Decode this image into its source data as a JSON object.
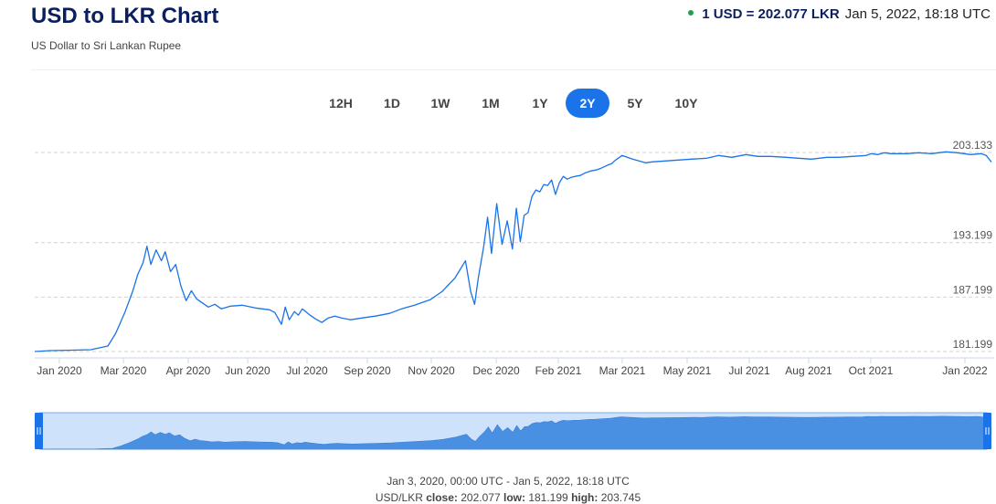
{
  "header": {
    "title": "USD to LKR Chart",
    "subtitle": "US Dollar to Sri Lankan Rupee",
    "rate_label": "1 USD = 202.077 LKR",
    "timestamp": "Jan 5, 2022, 18:18 UTC",
    "status_color": "#1fa34a"
  },
  "ranges": [
    "12H",
    "1D",
    "1W",
    "1M",
    "1Y",
    "2Y",
    "5Y",
    "10Y"
  ],
  "active_range": "2Y",
  "footer": {
    "period": "Jan 3, 2020, 00:00 UTC - Jan 5, 2022, 18:18 UTC",
    "pair": "USD/LKR",
    "close_label": "close:",
    "close": "202.077",
    "low_label": "low:",
    "low": "181.199",
    "high_label": "high:",
    "high": "203.745"
  },
  "chart_data": {
    "type": "line",
    "series": [
      {
        "x": [
          "2020-01-03",
          "2020-01-15",
          "2020-02-01",
          "2020-02-15",
          "2020-02-28",
          "2020-03-05",
          "2020-03-12",
          "2020-03-18",
          "2020-03-22",
          "2020-03-26",
          "2020-03-29",
          "2020-04-01",
          "2020-04-05",
          "2020-04-09",
          "2020-04-12",
          "2020-04-16",
          "2020-04-20",
          "2020-04-24",
          "2020-04-28",
          "2020-05-02",
          "2020-05-06",
          "2020-05-10",
          "2020-05-15",
          "2020-05-20",
          "2020-05-25",
          "2020-06-01",
          "2020-06-10",
          "2020-06-20",
          "2020-07-01",
          "2020-07-05",
          "2020-07-10",
          "2020-07-13",
          "2020-07-16",
          "2020-07-20",
          "2020-07-23",
          "2020-07-26",
          "2020-08-01",
          "2020-08-05",
          "2020-08-10",
          "2020-08-15",
          "2020-08-20",
          "2020-08-25",
          "2020-09-01",
          "2020-09-10",
          "2020-09-20",
          "2020-10-01",
          "2020-10-10",
          "2020-10-20",
          "2020-11-01",
          "2020-11-10",
          "2020-11-20",
          "2020-11-28",
          "2020-12-02",
          "2020-12-05",
          "2020-12-08",
          "2020-12-12",
          "2020-12-15",
          "2020-12-18",
          "2020-12-22",
          "2020-12-26",
          "2020-12-30",
          "2021-01-03",
          "2021-01-06",
          "2021-01-09",
          "2021-01-12",
          "2021-01-15",
          "2021-01-18",
          "2021-01-21",
          "2021-01-24",
          "2021-01-27",
          "2021-01-30",
          "2021-02-02",
          "2021-02-05",
          "2021-02-08",
          "2021-02-11",
          "2021-02-14",
          "2021-02-17",
          "2021-02-20",
          "2021-02-24",
          "2021-02-28",
          "2021-03-04",
          "2021-03-08",
          "2021-03-12",
          "2021-03-15",
          "2021-03-18",
          "2021-03-20",
          "2021-03-23",
          "2021-03-25",
          "2021-03-28",
          "2021-04-01",
          "2021-04-05",
          "2021-04-10",
          "2021-04-15",
          "2021-04-20",
          "2021-04-30",
          "2021-05-10",
          "2021-05-20",
          "2021-06-01",
          "2021-06-10",
          "2021-06-20",
          "2021-07-01",
          "2021-07-10",
          "2021-07-20",
          "2021-08-01",
          "2021-08-10",
          "2021-08-20",
          "2021-09-01",
          "2021-09-10",
          "2021-09-20",
          "2021-10-01",
          "2021-10-05",
          "2021-10-10",
          "2021-10-15",
          "2021-10-20",
          "2021-11-01",
          "2021-11-10",
          "2021-11-20",
          "2021-12-01",
          "2021-12-10",
          "2021-12-20",
          "2021-12-28",
          "2022-01-01",
          "2022-01-05"
        ],
        "y": [
          181.2,
          181.3,
          181.35,
          181.4,
          181.8,
          183.2,
          185.5,
          187.8,
          189.7,
          191.0,
          192.8,
          190.8,
          192.4,
          191.2,
          192.2,
          190.0,
          190.8,
          188.4,
          186.8,
          187.9,
          187.0,
          186.6,
          186.1,
          186.4,
          185.9,
          186.2,
          186.3,
          186.0,
          185.8,
          185.5,
          184.2,
          186.1,
          184.7,
          185.6,
          185.2,
          185.9,
          185.2,
          184.8,
          184.4,
          184.9,
          185.1,
          184.9,
          184.7,
          184.9,
          185.1,
          185.4,
          185.9,
          186.3,
          186.9,
          187.8,
          189.3,
          191.2,
          187.8,
          186.4,
          189.4,
          192.8,
          196.0,
          192.0,
          197.5,
          193.0,
          195.6,
          192.5,
          197.0,
          193.3,
          196.2,
          196.5,
          198.3,
          199.0,
          198.8,
          199.6,
          199.5,
          200.1,
          198.5,
          199.8,
          200.5,
          200.2,
          200.4,
          200.5,
          200.6,
          200.9,
          201.1,
          201.2,
          201.4,
          201.6,
          201.8,
          201.9,
          202.3,
          202.5,
          202.8,
          202.6,
          202.4,
          202.2,
          202.0,
          202.1,
          202.2,
          202.3,
          202.4,
          202.5,
          202.8,
          202.6,
          202.9,
          202.7,
          202.7,
          202.6,
          202.5,
          202.4,
          202.6,
          202.6,
          202.7,
          202.8,
          203.0,
          202.9,
          203.1,
          203.0,
          203.0,
          203.1,
          203.0,
          203.2,
          203.1,
          202.9,
          203.0,
          202.8,
          202.077
        ]
      }
    ],
    "ylim": [
      181.199,
      203.133
    ],
    "y_ticks": [
      181.199,
      187.199,
      193.199,
      203.133
    ],
    "x_ticks": [
      "Jan 2020",
      "Mar 2020",
      "Apr 2020",
      "Jun 2020",
      "Jul 2020",
      "Sep 2020",
      "Nov 2020",
      "Dec 2020",
      "Feb 2021",
      "Mar 2021",
      "May 2021",
      "Jul 2021",
      "Aug 2021",
      "Oct 2021",
      "Jan 2022"
    ],
    "grid": true,
    "line_color": "#1a73e8",
    "navigator_fill": "#4a90e2",
    "navigator_bg": "#cfe2fb"
  }
}
